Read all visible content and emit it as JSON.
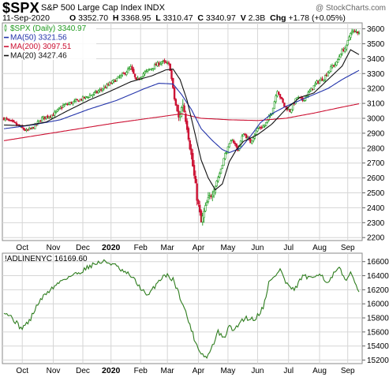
{
  "header": {
    "symbol": "$SPX",
    "subtitle": "S&P 500 Large Cap Index  INDX",
    "watermark": "@ StockCharts.com",
    "date": "11-Sep-2020",
    "open_label": "O",
    "open": "3352.70",
    "high_label": "H",
    "high": "3368.95",
    "low_label": "L",
    "low": "3310.47",
    "close_label": "C",
    "close": "3340.97",
    "volume_label": "V",
    "volume": "2.3B",
    "change_label": "Chg",
    "change": "+1.78 (+0.05%)"
  },
  "colors": {
    "up": "#1e9a1e",
    "down": "#cc1133",
    "ma50": "#2233aa",
    "ma200": "#cc1133",
    "ma20": "#111111",
    "adline": "#2e7d1e",
    "grid": "#d6d6d6"
  },
  "chart_data": [
    {
      "type": "candlestick",
      "title": "$SPX (Daily) 3340.97",
      "legend": [
        {
          "label": "$SPX (Daily) 3340.97",
          "color": "#1e9a1e"
        },
        {
          "label": "MA(50) 3321.56",
          "color": "#2233aa"
        },
        {
          "label": "MA(200) 3097.51",
          "color": "#cc1133"
        },
        {
          "label": "MA(20) 3427.46",
          "color": "#111111"
        }
      ],
      "legend_position": "top-left",
      "ylim": [
        2180,
        3640
      ],
      "y_ticks": [
        3600,
        3500,
        3400,
        3300,
        3200,
        3100,
        3000,
        2900,
        2800,
        2700,
        2600,
        2500,
        2400,
        2300,
        2200
      ],
      "x_ticks": [
        "Oct",
        "Nov",
        "Dec",
        "2020",
        "Feb",
        "Mar",
        "Apr",
        "May",
        "Jun",
        "Jul",
        "Aug",
        "Sep"
      ],
      "grid": true,
      "price_anchors": {
        "t": [
          0,
          8,
          16,
          21,
          27,
          35,
          42,
          50,
          58,
          66,
          75,
          84,
          90,
          94,
          99,
          104,
          106,
          112,
          117,
          118,
          121,
          124,
          127,
          130,
          133,
          137,
          140,
          144,
          149,
          153,
          157,
          162,
          166,
          170,
          175,
          180,
          185,
          190,
          194,
          199,
          203,
          208,
          212,
          217,
          222,
          227,
          233,
          236,
          239,
          243,
          246
        ],
        "close": [
          3000,
          2962,
          2915,
          2940,
          3000,
          3025,
          3085,
          3110,
          3140,
          3175,
          3230,
          3290,
          3340,
          3250,
          3300,
          3330,
          3345,
          3380,
          3360,
          3330,
          3130,
          3000,
          3100,
          2950,
          2750,
          2470,
          2300,
          2430,
          2530,
          2630,
          2760,
          2860,
          2790,
          2900,
          2840,
          2930,
          2950,
          3040,
          3190,
          3080,
          3050,
          3140,
          3120,
          3180,
          3240,
          3270,
          3350,
          3370,
          3440,
          3480,
          3580
        ]
      },
      "ma50_anchors": {
        "t": [
          0,
          20,
          40,
          60,
          80,
          100,
          110,
          120,
          126,
          133,
          140,
          148,
          155,
          160,
          168,
          175,
          182,
          190,
          200,
          210,
          220,
          230,
          240,
          252
        ],
        "value": [
          2930,
          2955,
          2990,
          3060,
          3120,
          3200,
          3235,
          3230,
          3160,
          3060,
          2930,
          2850,
          2790,
          2770,
          2800,
          2880,
          2970,
          3030,
          3080,
          3120,
          3160,
          3200,
          3260,
          3321.56
        ]
      },
      "ma200_anchors": {
        "t": [
          0,
          40,
          80,
          126,
          140,
          160,
          180,
          200,
          220,
          240,
          252
        ],
        "value": [
          2850,
          2910,
          2970,
          3030,
          3000,
          2990,
          2985,
          3000,
          3035,
          3075,
          3097.51
        ]
      },
      "ma20_anchors": {
        "t": [
          0,
          15,
          30,
          45,
          60,
          75,
          90,
          105,
          115,
          120,
          125,
          130,
          135,
          140,
          145,
          150,
          155,
          160,
          165,
          170,
          180,
          190,
          200,
          210,
          220,
          230,
          240,
          246,
          252
        ],
        "value": [
          2955,
          2950,
          2975,
          3050,
          3120,
          3180,
          3245,
          3285,
          3325,
          3330,
          3260,
          3120,
          2920,
          2720,
          2600,
          2520,
          2560,
          2710,
          2790,
          2845,
          2890,
          2960,
          3060,
          3140,
          3170,
          3260,
          3350,
          3460,
          3427.46
        ]
      }
    },
    {
      "type": "line",
      "title": "!ADLINENYC 16169.60",
      "legend": [
        {
          "label": "!ADLINENYC 16169.60",
          "color": "#2e7d1e"
        }
      ],
      "legend_position": "top-left",
      "ylim": [
        15150,
        16720
      ],
      "y_ticks": [
        16600,
        16400,
        16200,
        16000,
        15800,
        15600,
        15400,
        15200
      ],
      "x_ticks": [
        "Oct",
        "Nov",
        "Dec",
        "2020",
        "Feb",
        "Mar",
        "Apr",
        "May",
        "Jun",
        "Jul",
        "Aug",
        "Sep"
      ],
      "grid": true,
      "anchors": {
        "t": [
          0,
          6,
          12,
          18,
          24,
          30,
          36,
          42,
          48,
          54,
          60,
          66,
          72,
          78,
          84,
          90,
          96,
          102,
          108,
          114,
          120,
          126,
          132,
          136,
          140,
          144,
          148,
          152,
          156,
          160,
          164,
          168,
          172,
          178,
          184,
          188,
          192,
          196,
          200,
          206,
          212,
          218,
          224,
          230,
          234,
          238,
          242,
          246,
          250,
          252
        ],
        "value": [
          15900,
          15800,
          15650,
          15750,
          16000,
          16150,
          16250,
          16350,
          16400,
          16450,
          16530,
          16580,
          16600,
          16560,
          16460,
          16400,
          16250,
          16100,
          16280,
          16420,
          16350,
          16050,
          15700,
          15450,
          15300,
          15230,
          15400,
          15600,
          15500,
          15680,
          15620,
          15760,
          15800,
          15780,
          15950,
          16300,
          16380,
          16500,
          16300,
          16180,
          16400,
          16350,
          16450,
          16280,
          16420,
          16500,
          16350,
          16420,
          16300,
          16169.6
        ]
      }
    }
  ]
}
